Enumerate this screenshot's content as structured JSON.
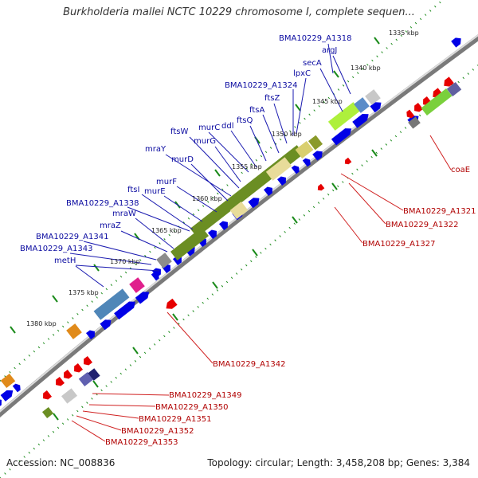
{
  "title": "Burkholderia mallei NCTC 10229 chromosome I, complete sequen...",
  "footer": {
    "accession": "Accession: NC_008836",
    "summary": "Topology: circular; Length: 3,458,208 bp; Genes: 3,384"
  },
  "ticks": [
    "1335 kbp",
    "1340 kbp",
    "1345 kbp",
    "1350 kbp",
    "1355 kbp",
    "1360 kbp",
    "1365 kbp",
    "1370 kbp",
    "1375 kbp",
    "1380 kbp"
  ],
  "blue_labels": [
    "BMA10229_A1318",
    "argJ",
    "secA",
    "lpxC",
    "BMA10229_A1324",
    "ftsZ",
    "ftsA",
    "ftsQ",
    "ddl",
    "murC",
    "ftsW",
    "murG",
    "mraY",
    "murD",
    "murF",
    "ftsI",
    "murE",
    "BMA10229_A1338",
    "mraW",
    "mraZ",
    "BMA10229_A1341",
    "BMA10229_A1343",
    "metH"
  ],
  "red_labels": [
    "coaE",
    "BMA10229_A1321",
    "BMA10229_A1322",
    "BMA10229_A1327",
    "BMA10229_A1342",
    "BMA10229_A1349",
    "BMA10229_A1350",
    "BMA10229_A1351",
    "BMA10229_A1352",
    "BMA10229_A1353"
  ],
  "colors": {
    "forward_gene": "#0000e6",
    "reverse_gene": "#e60000",
    "backbone": "#999999",
    "tick_mark": "#1a8a1a",
    "label_blue": "#0a0aa0",
    "label_red": "#b00000"
  }
}
